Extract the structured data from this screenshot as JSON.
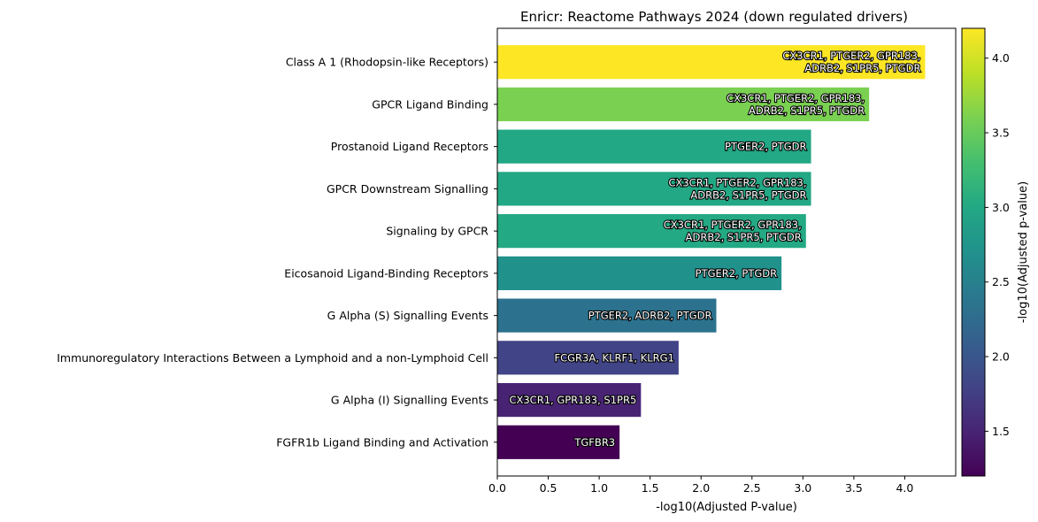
{
  "chart_data": {
    "type": "bar",
    "orientation": "horizontal",
    "title": "Enricr: Reactome Pathways 2024 (down regulated drivers)",
    "xlabel": "-log10(Adjusted P-value)",
    "ylabel": "",
    "xlim": [
      0,
      4.5
    ],
    "xticks": [
      "0.0",
      "0.5",
      "1.0",
      "1.5",
      "2.0",
      "2.5",
      "3.0",
      "3.5",
      "4.0"
    ],
    "grid": false,
    "categories": [
      "Class A 1 (Rhodopsin-like Receptors)",
      "GPCR Ligand Binding",
      "Prostanoid Ligand Receptors",
      "GPCR Downstream Signalling",
      "Signaling by GPCR",
      "Eicosanoid Ligand-Binding Receptors",
      "G Alpha (S) Signalling Events",
      "Immunoregulatory Interactions Between a Lymphoid and a non-Lymphoid Cell",
      "G Alpha (I) Signalling Events",
      "FGFR1b Ligand Binding and Activation"
    ],
    "values": [
      4.2,
      3.65,
      3.08,
      3.08,
      3.03,
      2.79,
      2.15,
      1.78,
      1.41,
      1.2
    ],
    "bar_labels": [
      [
        "CX3CR1, PTGER2, GPR183,",
        "ADRB2, S1PR5, PTGDR"
      ],
      [
        "CX3CR1, PTGER2, GPR183,",
        "ADRB2, S1PR5, PTGDR"
      ],
      [
        "PTGER2, PTGDR"
      ],
      [
        "CX3CR1, PTGER2, GPR183,",
        "ADRB2, S1PR5, PTGDR"
      ],
      [
        "CX3CR1, PTGER2, GPR183,",
        "ADRB2, S1PR5, PTGDR"
      ],
      [
        "PTGER2, PTGDR"
      ],
      [
        "PTGER2, ADRB2, PTGDR"
      ],
      [
        "FCGR3A, KLRF1, KLRG1"
      ],
      [
        "CX3CR1, GPR183, S1PR5"
      ],
      [
        "TGFBR3"
      ]
    ],
    "bar_colors": [
      "#fde725",
      "#7ad151",
      "#22a884",
      "#22a884",
      "#23a983",
      "#21918c",
      "#2c728e",
      "#414487",
      "#482374",
      "#440154"
    ],
    "colorbar": {
      "label": "-log10(Adjusted p-value)",
      "range": [
        1.2,
        4.2
      ],
      "ticks": [
        "1.5",
        "2.0",
        "2.5",
        "3.0",
        "3.5",
        "4.0"
      ],
      "colormap": "viridis"
    }
  }
}
